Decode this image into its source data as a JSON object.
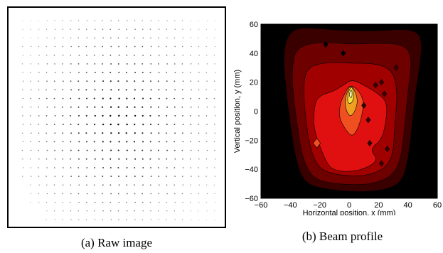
{
  "captions": {
    "raw": "(a) Raw image",
    "profile": "(b) Beam profile"
  },
  "chart_data": [
    {
      "type": "other",
      "panel": "raw",
      "description_visible": "dot grid raw camera image",
      "grid": {
        "columns": 25,
        "rows": 24
      },
      "colors": {
        "border": "#000000",
        "dot": "#000000",
        "background": "#ffffff"
      }
    },
    {
      "type": "heatmap",
      "panel": "profile",
      "style": "filled-contour",
      "xlabel": "Horizontal position, x (mm)",
      "ylabel": "Vertical position, y (mm)",
      "xlim": [
        -60,
        60
      ],
      "ylim": [
        -60,
        60
      ],
      "xticks": [
        -60,
        -40,
        -20,
        0,
        20,
        40,
        60
      ],
      "yticks": [
        -60,
        -40,
        -20,
        0,
        20,
        40,
        60
      ],
      "levels": [
        {
          "level": 0,
          "color": "#000000"
        },
        {
          "level": 1,
          "color": "#3a0000",
          "outline_mm": [
            [
              -42,
              52
            ],
            [
              -35,
              58
            ],
            [
              -10,
              56
            ],
            [
              15,
              55
            ],
            [
              40,
              57
            ],
            [
              50,
              52
            ],
            [
              48,
              30
            ],
            [
              44,
              5
            ],
            [
              42,
              -20
            ],
            [
              38,
              -45
            ],
            [
              30,
              -53
            ],
            [
              10,
              -56
            ],
            [
              -15,
              -54
            ],
            [
              -30,
              -50
            ],
            [
              -36,
              -35
            ],
            [
              -40,
              -10
            ],
            [
              -43,
              15
            ],
            [
              -45,
              38
            ]
          ]
        },
        {
          "level": 2,
          "color": "#6e0000",
          "outline_mm": [
            [
              -36,
              44
            ],
            [
              -20,
              48
            ],
            [
              0,
              46
            ],
            [
              20,
              47
            ],
            [
              38,
              46
            ],
            [
              43,
              36
            ],
            [
              40,
              14
            ],
            [
              38,
              -10
            ],
            [
              35,
              -35
            ],
            [
              28,
              -46
            ],
            [
              12,
              -51
            ],
            [
              -12,
              -50
            ],
            [
              -25,
              -46
            ],
            [
              -32,
              -32
            ],
            [
              -35,
              -12
            ],
            [
              -38,
              10
            ],
            [
              -39,
              30
            ]
          ]
        },
        {
          "level": 3,
          "color": "#a00000",
          "outline_mm": [
            [
              -30,
              30
            ],
            [
              -15,
              34
            ],
            [
              0,
              33
            ],
            [
              18,
              33
            ],
            [
              30,
              28
            ],
            [
              33,
              12
            ],
            [
              31,
              -10
            ],
            [
              30,
              -30
            ],
            [
              24,
              -40
            ],
            [
              10,
              -45
            ],
            [
              -8,
              -44
            ],
            [
              -20,
              -40
            ],
            [
              -26,
              -28
            ],
            [
              -29,
              -10
            ],
            [
              -31,
              10
            ]
          ]
        },
        {
          "level": 4,
          "color": "#e01010",
          "outline_mm": [
            [
              -22,
              10
            ],
            [
              -10,
              14
            ],
            [
              -4,
              18
            ],
            [
              2,
              22
            ],
            [
              10,
              18
            ],
            [
              20,
              12
            ],
            [
              26,
              6
            ],
            [
              25,
              -8
            ],
            [
              22,
              -20
            ],
            [
              14,
              -26
            ],
            [
              20,
              -34
            ],
            [
              10,
              -40
            ],
            [
              -2,
              -42
            ],
            [
              -12,
              -40
            ],
            [
              -16,
              -34
            ],
            [
              -20,
              -24
            ],
            [
              -24,
              -12
            ],
            [
              -24,
              0
            ]
          ]
        },
        {
          "level": 5,
          "color": "#f05020",
          "outline_mm": [
            [
              -6,
              6
            ],
            [
              -3,
              12
            ],
            [
              0,
              18
            ],
            [
              5,
              16
            ],
            [
              10,
              8
            ],
            [
              9,
              -2
            ],
            [
              6,
              -12
            ],
            [
              2,
              -18
            ],
            [
              -3,
              -12
            ],
            [
              -7,
              -4
            ]
          ]
        },
        {
          "level": 6,
          "color": "#f0a020",
          "outline_mm": [
            [
              -3,
              8
            ],
            [
              -1,
              14
            ],
            [
              1,
              18
            ],
            [
              4,
              14
            ],
            [
              6,
              7
            ],
            [
              4,
              0
            ],
            [
              1,
              -4
            ],
            [
              -2,
              0
            ]
          ]
        },
        {
          "level": 7,
          "color": "#f8e040",
          "outline_mm": [
            [
              -1,
              10
            ],
            [
              0,
              15
            ],
            [
              2,
              17
            ],
            [
              3,
              13
            ],
            [
              3,
              8
            ],
            [
              1,
              5
            ],
            [
              -1,
              6
            ]
          ]
        },
        {
          "level": 8,
          "color": "#fff8b0",
          "outline_mm": [
            [
              0,
              11
            ],
            [
              1,
              15
            ],
            [
              2,
              14
            ],
            [
              2,
              10
            ],
            [
              1,
              9
            ]
          ]
        }
      ],
      "hot_spots_mm": [
        {
          "x": -22,
          "y": -22,
          "r": 2.5,
          "color": "#f05020"
        },
        {
          "x": 10,
          "y": 4,
          "r": 1.5,
          "color": "#3a0000"
        },
        {
          "x": 18,
          "y": 18,
          "r": 1.5,
          "color": "#3a0000"
        },
        {
          "x": 22,
          "y": 20,
          "r": 1.5,
          "color": "#3a0000"
        },
        {
          "x": 24,
          "y": 12,
          "r": 1.5,
          "color": "#3a0000"
        },
        {
          "x": 13,
          "y": -6,
          "r": 1.5,
          "color": "#3a0000"
        },
        {
          "x": 14,
          "y": -22,
          "r": 1.5,
          "color": "#3a0000"
        },
        {
          "x": 26,
          "y": -26,
          "r": 1.5,
          "color": "#3a0000"
        },
        {
          "x": 32,
          "y": 30,
          "r": 1.5,
          "color": "#3a0000"
        },
        {
          "x": -4,
          "y": 40,
          "r": 1.5,
          "color": "#000000"
        },
        {
          "x": 22,
          "y": -36,
          "r": 1.5,
          "color": "#3a0000"
        },
        {
          "x": -16,
          "y": 46,
          "r": 1.5,
          "color": "#000000"
        }
      ]
    }
  ]
}
